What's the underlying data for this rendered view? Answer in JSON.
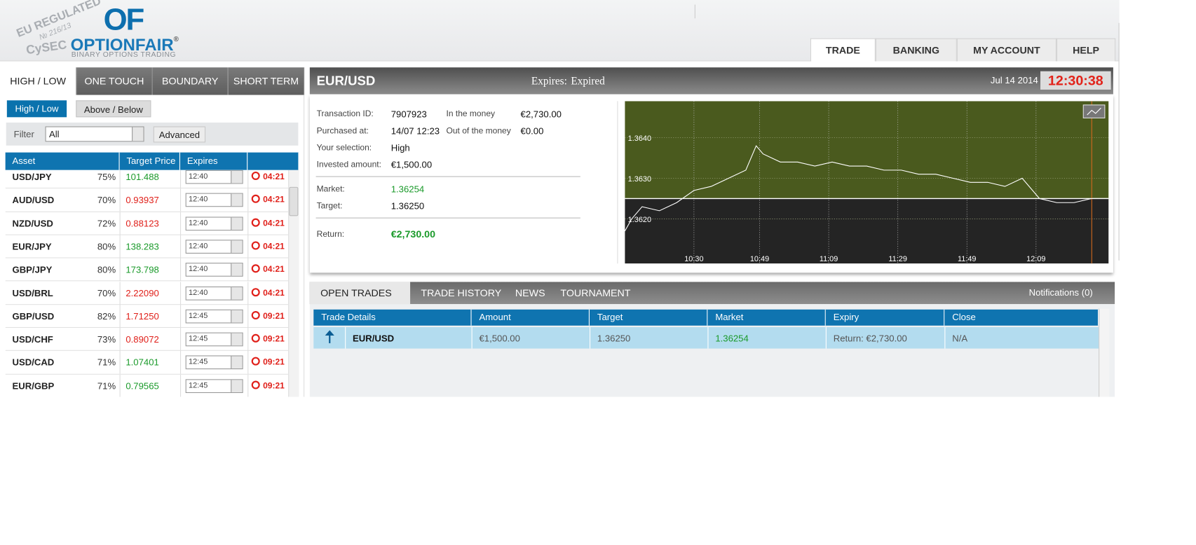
{
  "logo": {
    "badge_top": "EU REGULATED",
    "badge_num": "№ 216/13",
    "badge_bottom": "CySEC",
    "mark": "OF",
    "brand_a": "OPTION",
    "brand_b": "FAIR",
    "reg": "®",
    "tagline": "BINARY OPTIONS TRADING"
  },
  "nav": [
    "TRADE",
    "BANKING",
    "MY ACCOUNT",
    "HELP"
  ],
  "option_tabs": [
    "HIGH / LOW",
    "ONE TOUCH",
    "BOUNDARY",
    "SHORT TERM"
  ],
  "sub_tabs": [
    "High / Low",
    "Above / Below"
  ],
  "filter": {
    "label": "Filter",
    "value": "All",
    "button": "Advanced"
  },
  "assets": {
    "headers": [
      "Asset",
      "Target Price",
      "Expires"
    ],
    "rows": [
      {
        "asset": "USD/JPY",
        "payout": "75%",
        "price": "101.488",
        "color": "#1a9a2a",
        "expires": "12:40",
        "countdown": "04:21"
      },
      {
        "asset": "AUD/USD",
        "payout": "70%",
        "price": "0.93937",
        "color": "#e0201a",
        "expires": "12:40",
        "countdown": "04:21"
      },
      {
        "asset": "NZD/USD",
        "payout": "72%",
        "price": "0.88123",
        "color": "#e0201a",
        "expires": "12:40",
        "countdown": "04:21"
      },
      {
        "asset": "EUR/JPY",
        "payout": "80%",
        "price": "138.283",
        "color": "#1a9a2a",
        "expires": "12:40",
        "countdown": "04:21"
      },
      {
        "asset": "GBP/JPY",
        "payout": "80%",
        "price": "173.798",
        "color": "#1a9a2a",
        "expires": "12:40",
        "countdown": "04:21"
      },
      {
        "asset": "USD/BRL",
        "payout": "70%",
        "price": "2.22090",
        "color": "#e0201a",
        "expires": "12:40",
        "countdown": "04:21"
      },
      {
        "asset": "GBP/USD",
        "payout": "82%",
        "price": "1.71250",
        "color": "#e0201a",
        "expires": "12:45",
        "countdown": "09:21"
      },
      {
        "asset": "USD/CHF",
        "payout": "73%",
        "price": "0.89072",
        "color": "#e0201a",
        "expires": "12:45",
        "countdown": "09:21"
      },
      {
        "asset": "USD/CAD",
        "payout": "71%",
        "price": "1.07401",
        "color": "#1a9a2a",
        "expires": "12:45",
        "countdown": "09:21"
      },
      {
        "asset": "EUR/GBP",
        "payout": "71%",
        "price": "0.79565",
        "color": "#1a9a2a",
        "expires": "12:45",
        "countdown": "09:21"
      }
    ]
  },
  "trade": {
    "asset": "EUR/USD",
    "expires_label": "Expires:",
    "expires_value": "Expired",
    "date": "Jul 14 2014",
    "clock": "12:30:38",
    "details": [
      [
        "Transaction ID:",
        "7907923"
      ],
      [
        "Purchased at:",
        "14/07 12:23"
      ],
      [
        "Your selection:",
        "High"
      ],
      [
        "Invested amount:",
        "€1,500.00"
      ]
    ],
    "money": [
      [
        "In the money",
        "€2,730.00"
      ],
      [
        "Out of the money",
        "€0.00"
      ]
    ],
    "market_label": "Market:",
    "market": "1.36254",
    "target_label": "Target:",
    "target": "1.36250",
    "return_label": "Return:",
    "return": "€2,730.00"
  },
  "price_chart": {
    "ylim": [
      1.3609,
      1.3649
    ],
    "yticks": [
      {
        "value": 1.364,
        "label": "1.3640"
      },
      {
        "value": 1.363,
        "label": "1.3630"
      },
      {
        "value": 1.362,
        "label": "1.3620"
      }
    ],
    "xlim": [
      "10:10",
      "12:30"
    ],
    "xticks": [
      "10:30",
      "10:49",
      "11:09",
      "11:29",
      "11:49",
      "12:09"
    ],
    "target": 1.3625,
    "line_color": "#ffffff",
    "x": [
      "10:10",
      "10:12",
      "10:15",
      "10:20",
      "10:25",
      "10:30",
      "10:35",
      "10:40",
      "10:45",
      "10:48",
      "10:50",
      "10:55",
      "11:00",
      "11:05",
      "11:10",
      "11:15",
      "11:20",
      "11:25",
      "11:30",
      "11:35",
      "11:40",
      "11:45",
      "11:50",
      "11:55",
      "12:00",
      "12:05",
      "12:10",
      "12:15",
      "12:20",
      "12:25",
      "12:30"
    ],
    "values": [
      1.3617,
      1.362,
      1.3623,
      1.3622,
      1.3624,
      1.3627,
      1.3628,
      1.363,
      1.3632,
      1.3638,
      1.3636,
      1.3634,
      1.3634,
      1.3633,
      1.3634,
      1.3633,
      1.3633,
      1.3632,
      1.3632,
      1.3631,
      1.3631,
      1.363,
      1.3629,
      1.3629,
      1.3628,
      1.363,
      1.3625,
      1.3624,
      1.3624,
      1.3625,
      1.3625
    ]
  },
  "bottom_tabs": [
    "OPEN TRADES",
    "TRADE HISTORY",
    "NEWS",
    "TOURNAMENT"
  ],
  "notifications": "Notifications (0)",
  "open_trades": {
    "headers": [
      "Trade Details",
      "Amount",
      "Target",
      "Market",
      "Expiry",
      "Close"
    ],
    "rows": [
      [
        "EUR/USD",
        "€1,500.00",
        "1.36250",
        "1.36254",
        "Return: €2,730.00",
        "N/A"
      ]
    ]
  }
}
